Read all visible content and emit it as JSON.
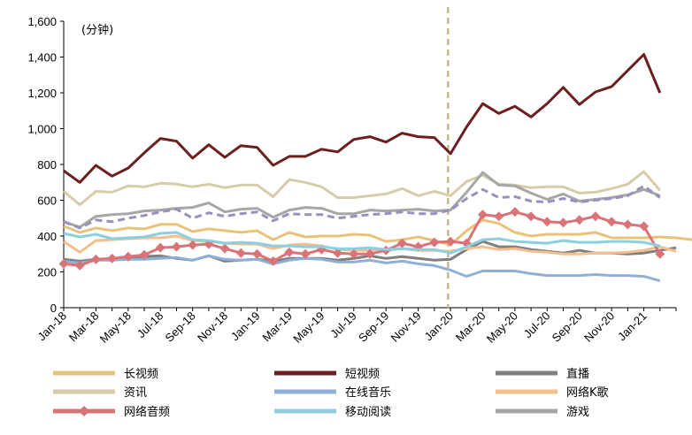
{
  "chart_data": {
    "type": "line",
    "unit_label": "(分钟)",
    "ylim": [
      0,
      1600
    ],
    "y_ticks": [
      0,
      200,
      400,
      600,
      800,
      1000,
      1200,
      1400,
      1600
    ],
    "y_tick_labels": [
      "0",
      "200",
      "400",
      "600",
      "800",
      "1,000",
      "1,200",
      "1,400",
      "1,600"
    ],
    "x_tick_labels": [
      "Jan-18",
      "Mar-18",
      "May-18",
      "Jul-18",
      "Sep-18",
      "Nov-18",
      "Jan-19",
      "Mar-19",
      "May-19",
      "Jul-19",
      "Sep-19",
      "Nov-19",
      "Jan-20",
      "Mar-20",
      "May-20",
      "Jul-20",
      "Sep-20",
      "Nov-20",
      "Jan-21"
    ],
    "divider_after_index": 24,
    "series": [
      {
        "name": "长视频",
        "color": "#e8c27a",
        "width": 3,
        "dash": "",
        "marker": "",
        "values": [
          455,
          420,
          445,
          430,
          445,
          440,
          465,
          465,
          425,
          440,
          430,
          420,
          430,
          380,
          420,
          395,
          400,
          400,
          410,
          405,
          370,
          380,
          395,
          375,
          350,
          430,
          490,
          470,
          420,
          400,
          410,
          410,
          410,
          420,
          390,
          390,
          390,
          395,
          390,
          380,
          340
        ]
      },
      {
        "name": "短视频",
        "color": "#6b1f1f",
        "width": 3,
        "dash": "",
        "marker": "",
        "values": [
          765,
          700,
          795,
          735,
          780,
          865,
          945,
          930,
          835,
          910,
          840,
          905,
          895,
          795,
          845,
          845,
          885,
          870,
          940,
          955,
          925,
          975,
          955,
          950,
          860,
          1010,
          1140,
          1085,
          1125,
          1065,
          1140,
          1230,
          1135,
          1205,
          1235,
          1325,
          1415,
          1200
        ]
      },
      {
        "name": "直播",
        "color": "#7f7f7f",
        "width": 3,
        "dash": "",
        "marker": "",
        "values": [
          270,
          260,
          270,
          270,
          275,
          285,
          290,
          275,
          265,
          290,
          260,
          265,
          270,
          260,
          275,
          275,
          275,
          265,
          275,
          290,
          275,
          285,
          275,
          265,
          270,
          325,
          370,
          340,
          340,
          325,
          315,
          305,
          320,
          305,
          305,
          300,
          305,
          320,
          335
        ]
      },
      {
        "name": "资讯",
        "color": "#d6ccaa",
        "width": 3,
        "dash": "",
        "marker": "",
        "values": [
          650,
          575,
          650,
          645,
          680,
          675,
          695,
          690,
          675,
          690,
          670,
          685,
          685,
          620,
          715,
          700,
          675,
          615,
          615,
          625,
          635,
          665,
          625,
          650,
          625,
          705,
          740,
          690,
          685,
          670,
          675,
          675,
          640,
          645,
          665,
          690,
          760,
          655
        ]
      },
      {
        "name": "在线音乐",
        "color": "#8fb0d6",
        "width": 3,
        "dash": "",
        "marker": "",
        "values": [
          260,
          250,
          265,
          265,
          270,
          270,
          275,
          280,
          265,
          290,
          270,
          265,
          270,
          245,
          265,
          275,
          270,
          255,
          255,
          265,
          250,
          260,
          245,
          235,
          210,
          175,
          205,
          205,
          205,
          190,
          180,
          180,
          180,
          185,
          180,
          180,
          175,
          150
        ]
      },
      {
        "name": "网络K歌",
        "color": "#f5be8c",
        "width": 3,
        "dash": "",
        "marker": "",
        "values": [
          370,
          310,
          375,
          380,
          385,
          390,
          390,
          400,
          375,
          370,
          360,
          355,
          355,
          330,
          350,
          355,
          345,
          325,
          320,
          320,
          320,
          330,
          320,
          320,
          315,
          330,
          340,
          325,
          330,
          315,
          310,
          300,
          300,
          305,
          305,
          310,
          320,
          340,
          315
        ]
      },
      {
        "name": "网络音频",
        "color": "#d97378",
        "width": 3,
        "dash": "",
        "marker": "diamond",
        "values": [
          245,
          235,
          270,
          275,
          285,
          295,
          335,
          340,
          350,
          355,
          330,
          305,
          300,
          260,
          310,
          300,
          325,
          305,
          300,
          300,
          320,
          360,
          340,
          365,
          370,
          360,
          520,
          510,
          535,
          510,
          480,
          475,
          490,
          510,
          480,
          465,
          455,
          300
        ]
      },
      {
        "name": "移动阅读",
        "color": "#8ccfe0",
        "width": 3,
        "dash": "",
        "marker": "",
        "values": [
          415,
          395,
          410,
          385,
          390,
          395,
          415,
          420,
          380,
          375,
          360,
          365,
          360,
          345,
          345,
          340,
          340,
          330,
          330,
          335,
          325,
          330,
          325,
          325,
          305,
          340,
          380,
          385,
          370,
          365,
          360,
          375,
          365,
          365,
          370,
          370,
          365,
          345
        ]
      },
      {
        "name": "游戏",
        "color": "#a6a6a6",
        "width": 3,
        "dash": "",
        "marker": "",
        "values": [
          480,
          450,
          510,
          520,
          525,
          540,
          545,
          555,
          560,
          585,
          535,
          550,
          555,
          505,
          545,
          560,
          555,
          525,
          525,
          545,
          540,
          545,
          550,
          540,
          545,
          645,
          755,
          685,
          680,
          640,
          605,
          635,
          595,
          605,
          615,
          630,
          660,
          625
        ]
      },
      {
        "name": "游戏(虚线)",
        "color": "#9a8fbf",
        "width": 3,
        "dash": "8,5",
        "marker": "",
        "values": [
          480,
          445,
          490,
          480,
          500,
          515,
          535,
          550,
          500,
          530,
          510,
          525,
          535,
          485,
          525,
          520,
          520,
          500,
          510,
          520,
          525,
          535,
          525,
          525,
          545,
          610,
          660,
          615,
          620,
          595,
          590,
          610,
          590,
          600,
          610,
          625,
          680,
          615
        ]
      }
    ],
    "legend": [
      {
        "label": "长视频",
        "color": "#e8c27a",
        "marker": ""
      },
      {
        "label": "短视频",
        "color": "#6b1f1f",
        "marker": ""
      },
      {
        "label": "直播",
        "color": "#7f7f7f",
        "marker": ""
      },
      {
        "label": "资讯",
        "color": "#d6ccaa",
        "marker": ""
      },
      {
        "label": "在线音乐",
        "color": "#8fb0d6",
        "marker": ""
      },
      {
        "label": "网络K歌",
        "color": "#f5be8c",
        "marker": ""
      },
      {
        "label": "网络音频",
        "color": "#d97378",
        "marker": "diamond"
      },
      {
        "label": "移动阅读",
        "color": "#8ccfe0",
        "marker": ""
      },
      {
        "label": "游戏",
        "color": "#a6a6a6",
        "marker": ""
      }
    ]
  }
}
